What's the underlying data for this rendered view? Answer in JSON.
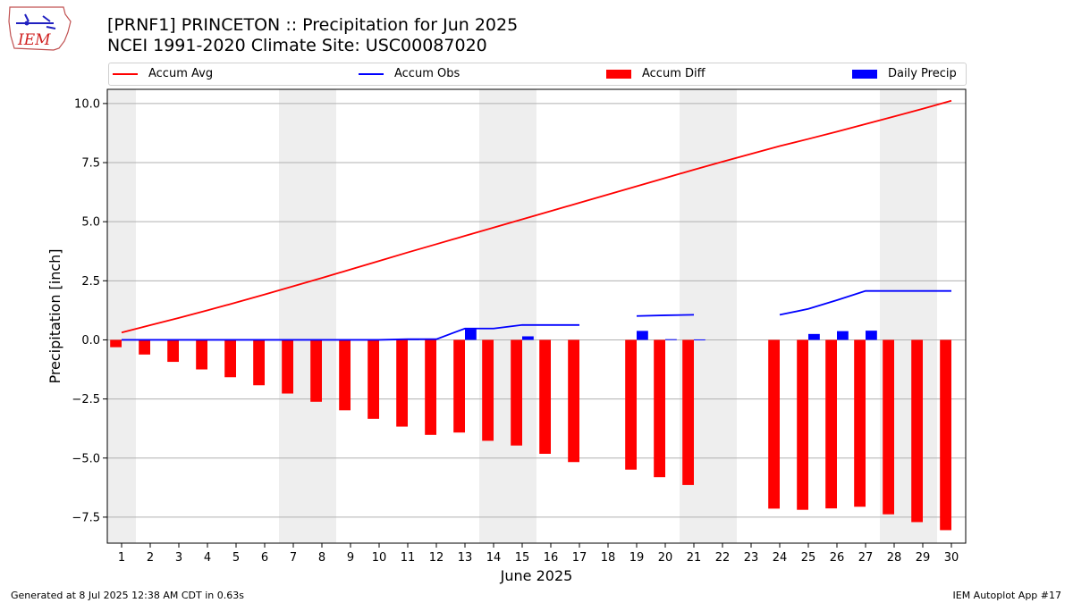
{
  "header": {
    "logo_text": "IEM",
    "title": "[PRNF1] PRINCETON :: Precipitation for Jun 2025",
    "subtitle": "NCEI 1991-2020 Climate Site: USC00087020"
  },
  "legend": {
    "placement": "top, full width",
    "items": [
      {
        "label": "Accum Avg",
        "kind": "line",
        "color": "#ff0000"
      },
      {
        "label": "Accum Obs",
        "kind": "line",
        "color": "#0000ff"
      },
      {
        "label": "Accum Diff",
        "kind": "bar",
        "color": "#ff0000"
      },
      {
        "label": "Daily Precip",
        "kind": "bar",
        "color": "#0000ff"
      }
    ]
  },
  "footer": {
    "generated": "Generated at 8 Jul 2025 12:38 AM CDT in 0.63s",
    "app": "IEM Autoplot App #17"
  },
  "chart_data": {
    "type": "bar",
    "xlabel": "June 2025",
    "ylabel": "Precipitation [inch]",
    "xlim": [
      0.5,
      30.5
    ],
    "ylim": [
      -8.6,
      10.6
    ],
    "yticks": [
      -7.5,
      -5.0,
      -2.5,
      0.0,
      2.5,
      5.0,
      7.5,
      10.0
    ],
    "ytick_labels": [
      "−7.5",
      "−5.0",
      "−2.5",
      "0.0",
      "2.5",
      "5.0",
      "7.5",
      "10.0"
    ],
    "xticks": [
      1,
      2,
      3,
      4,
      5,
      6,
      7,
      8,
      9,
      10,
      11,
      12,
      13,
      14,
      15,
      16,
      17,
      18,
      19,
      20,
      21,
      22,
      23,
      24,
      25,
      26,
      27,
      28,
      29,
      30
    ],
    "xtick_labels": [
      "1",
      "2",
      "3",
      "4",
      "5",
      "6",
      "7",
      "8",
      "9",
      "10",
      "11",
      "12",
      "13",
      "14",
      "15",
      "16",
      "17",
      "18",
      "19",
      "20",
      "21",
      "22",
      "23",
      "24",
      "25",
      "26",
      "27",
      "28",
      "29",
      "30"
    ],
    "grid": "horizontal",
    "weekend_shading": {
      "color": "#eeeeee",
      "ranges": [
        [
          0.5,
          1.5
        ],
        [
          6.5,
          8.5
        ],
        [
          13.5,
          15.5
        ],
        [
          20.5,
          22.5
        ],
        [
          27.5,
          29.5
        ]
      ]
    },
    "series": [
      {
        "name": "Accum Avg",
        "kind": "line",
        "color": "#ff0000",
        "points": [
          [
            1,
            0.31
          ],
          [
            2,
            0.62
          ],
          [
            3,
            0.93
          ],
          [
            4,
            1.25
          ],
          [
            5,
            1.58
          ],
          [
            6,
            1.92
          ],
          [
            7,
            2.27
          ],
          [
            8,
            2.62
          ],
          [
            9,
            2.98
          ],
          [
            10,
            3.34
          ],
          [
            11,
            3.7
          ],
          [
            12,
            4.05
          ],
          [
            13,
            4.4
          ],
          [
            14,
            4.75
          ],
          [
            15,
            5.1
          ],
          [
            16,
            5.45
          ],
          [
            17,
            5.8
          ],
          [
            18,
            6.15
          ],
          [
            19,
            6.5
          ],
          [
            20,
            6.85
          ],
          [
            21,
            7.2
          ],
          [
            22,
            7.54
          ],
          [
            23,
            7.87
          ],
          [
            24,
            8.2
          ],
          [
            25,
            8.5
          ],
          [
            26,
            8.81
          ],
          [
            27,
            9.13
          ],
          [
            28,
            9.45
          ],
          [
            29,
            9.78
          ],
          [
            30,
            10.12
          ]
        ]
      },
      {
        "name": "Accum Obs",
        "kind": "line",
        "color": "#0000ff",
        "segments": [
          [
            [
              1,
              0.0
            ],
            [
              2,
              0.0
            ],
            [
              3,
              0.0
            ],
            [
              4,
              0.0
            ],
            [
              5,
              0.0
            ],
            [
              6,
              0.0
            ],
            [
              7,
              0.0
            ],
            [
              8,
              0.0
            ],
            [
              9,
              0.0
            ],
            [
              10,
              0.0
            ],
            [
              11,
              0.03
            ],
            [
              12,
              0.03
            ],
            [
              13,
              0.48
            ],
            [
              14,
              0.48
            ],
            [
              15,
              0.63
            ],
            [
              16,
              0.63
            ],
            [
              17,
              0.63
            ]
          ],
          [
            [
              19,
              1.01
            ],
            [
              20,
              1.04
            ],
            [
              21,
              1.06
            ]
          ],
          [
            [
              24,
              1.06
            ],
            [
              25,
              1.31
            ],
            [
              26,
              1.68
            ],
            [
              27,
              2.07
            ],
            [
              28,
              2.07
            ],
            [
              29,
              2.07
            ],
            [
              30,
              2.07
            ]
          ]
        ]
      },
      {
        "name": "Accum Diff",
        "kind": "bar",
        "color": "#ff0000",
        "points": [
          [
            1,
            -0.31
          ],
          [
            2,
            -0.62
          ],
          [
            3,
            -0.93
          ],
          [
            4,
            -1.25
          ],
          [
            5,
            -1.58
          ],
          [
            6,
            -1.92
          ],
          [
            7,
            -2.27
          ],
          [
            8,
            -2.62
          ],
          [
            9,
            -2.98
          ],
          [
            10,
            -3.34
          ],
          [
            11,
            -3.67
          ],
          [
            12,
            -4.02
          ],
          [
            13,
            -3.92
          ],
          [
            14,
            -4.27
          ],
          [
            15,
            -4.47
          ],
          [
            16,
            -4.82
          ],
          [
            17,
            -5.17
          ],
          [
            19,
            -5.49
          ],
          [
            20,
            -5.81
          ],
          [
            21,
            -6.14
          ],
          [
            24,
            -7.14
          ],
          [
            25,
            -7.19
          ],
          [
            26,
            -7.13
          ],
          [
            27,
            -7.06
          ],
          [
            28,
            -7.38
          ],
          [
            29,
            -7.71
          ],
          [
            30,
            -8.05
          ]
        ]
      },
      {
        "name": "Daily Precip",
        "kind": "bar",
        "color": "#0000ff",
        "points": [
          [
            11,
            0.03
          ],
          [
            13,
            0.45
          ],
          [
            15,
            0.15
          ],
          [
            19,
            0.38
          ],
          [
            20,
            0.03
          ],
          [
            21,
            0.02
          ],
          [
            25,
            0.25
          ],
          [
            26,
            0.37
          ],
          [
            27,
            0.39
          ]
        ]
      }
    ]
  }
}
